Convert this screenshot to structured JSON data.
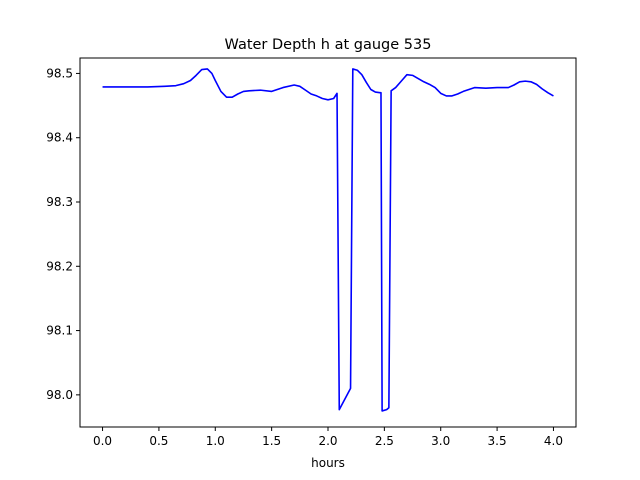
{
  "chart_data": {
    "type": "line",
    "title": "Water Depth h at gauge 535",
    "xlabel": "hours",
    "ylabel": "",
    "xlim": [
      -0.2,
      4.2
    ],
    "ylim": [
      97.95,
      98.524
    ],
    "xticks": [
      0.0,
      0.5,
      1.0,
      1.5,
      2.0,
      2.5,
      3.0,
      3.5,
      4.0
    ],
    "xtick_labels": [
      "0.0",
      "0.5",
      "1.0",
      "1.5",
      "2.0",
      "2.5",
      "3.0",
      "3.5",
      "4.0"
    ],
    "yticks": [
      98.0,
      98.1,
      98.2,
      98.3,
      98.4,
      98.5
    ],
    "ytick_labels": [
      "98.0",
      "98.1",
      "98.2",
      "98.3",
      "98.4",
      "98.5"
    ],
    "grid": false,
    "series": [
      {
        "color": "#0000ff",
        "x": [
          0.0,
          0.2,
          0.4,
          0.55,
          0.65,
          0.72,
          0.78,
          0.83,
          0.88,
          0.93,
          0.97,
          1.0,
          1.05,
          1.1,
          1.15,
          1.2,
          1.25,
          1.3,
          1.4,
          1.5,
          1.6,
          1.7,
          1.75,
          1.8,
          1.85,
          1.9,
          1.95,
          2.0,
          2.05,
          2.08,
          2.1,
          2.2,
          2.22,
          2.26,
          2.3,
          2.34,
          2.38,
          2.42,
          2.46,
          2.47,
          2.48,
          2.52,
          2.54,
          2.56,
          2.6,
          2.65,
          2.7,
          2.75,
          2.8,
          2.85,
          2.9,
          2.95,
          3.0,
          3.05,
          3.1,
          3.15,
          3.2,
          3.3,
          3.4,
          3.5,
          3.6,
          3.65,
          3.7,
          3.75,
          3.8,
          3.85,
          3.9,
          3.95,
          4.0
        ],
        "y": [
          98.479,
          98.479,
          98.479,
          98.48,
          98.481,
          98.484,
          98.489,
          98.497,
          98.506,
          98.507,
          98.5,
          98.489,
          98.472,
          98.463,
          98.463,
          98.468,
          98.472,
          98.473,
          98.474,
          98.472,
          98.478,
          98.482,
          98.48,
          98.474,
          98.468,
          98.465,
          98.461,
          98.459,
          98.461,
          98.469,
          97.977,
          98.01,
          98.507,
          98.505,
          98.498,
          98.486,
          98.475,
          98.471,
          98.47,
          98.47,
          97.975,
          97.977,
          97.98,
          98.473,
          98.478,
          98.488,
          98.498,
          98.497,
          98.492,
          98.487,
          98.483,
          98.478,
          98.469,
          98.465,
          98.465,
          98.468,
          98.472,
          98.478,
          98.477,
          98.478,
          98.478,
          98.482,
          98.487,
          98.488,
          98.487,
          98.483,
          98.476,
          98.47,
          98.465
        ]
      }
    ]
  }
}
